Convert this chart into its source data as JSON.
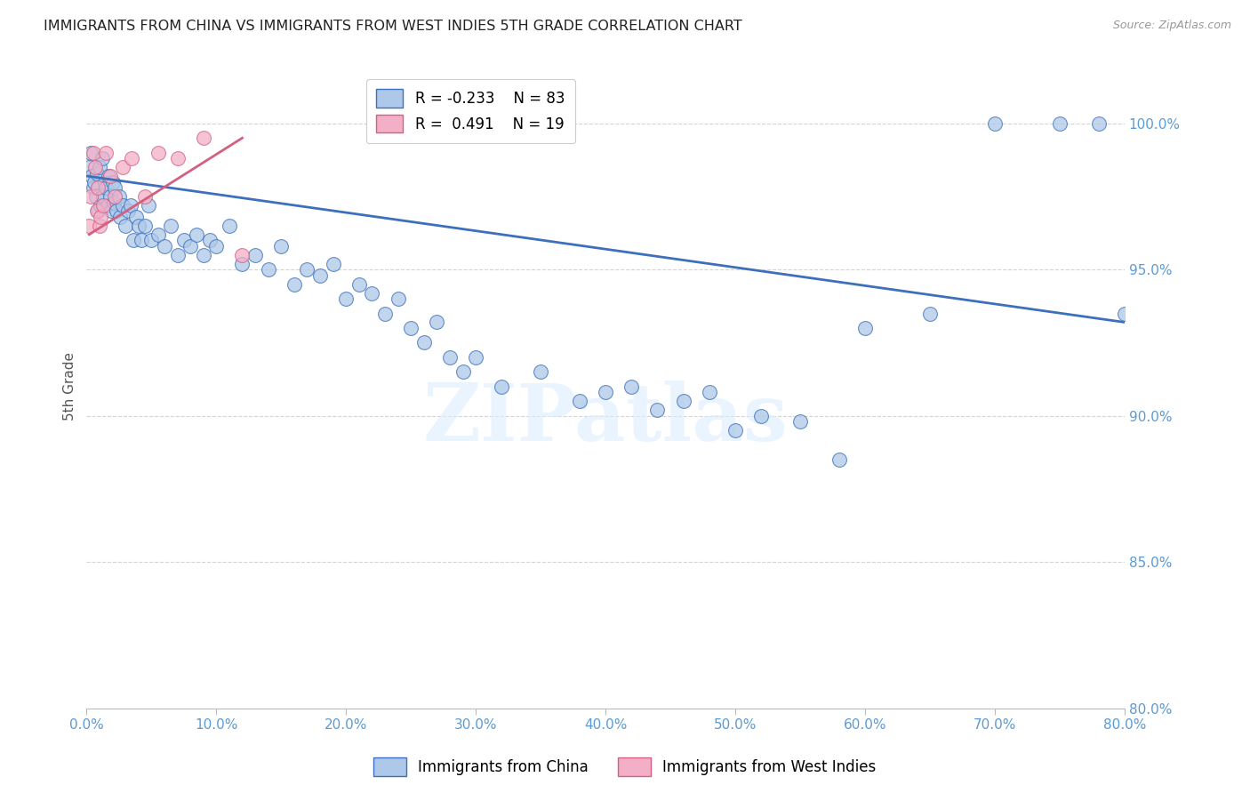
{
  "title": "IMMIGRANTS FROM CHINA VS IMMIGRANTS FROM WEST INDIES 5TH GRADE CORRELATION CHART",
  "source": "Source: ZipAtlas.com",
  "ylabel": "5th Grade",
  "xlim": [
    0.0,
    80.0
  ],
  "ylim": [
    80.0,
    102.0
  ],
  "yticks": [
    80.0,
    85.0,
    90.0,
    95.0,
    100.0
  ],
  "xticks": [
    0.0,
    10.0,
    20.0,
    30.0,
    40.0,
    50.0,
    60.0,
    70.0,
    80.0
  ],
  "china_R": -0.233,
  "china_N": 83,
  "westindies_R": 0.491,
  "westindies_N": 19,
  "china_color": "#adc8e8",
  "westindies_color": "#f4afc8",
  "china_line_color": "#3c6fbc",
  "westindies_line_color": "#d46080",
  "axis_color": "#5b9bd5",
  "grid_color": "#d0d0d0",
  "watermark_color": "#ddeeff",
  "china_x": [
    0.2,
    0.3,
    0.4,
    0.5,
    0.6,
    0.7,
    0.8,
    0.9,
    1.0,
    1.1,
    1.2,
    1.3,
    1.4,
    1.5,
    1.6,
    1.7,
    1.8,
    1.9,
    2.0,
    2.1,
    2.2,
    2.3,
    2.5,
    2.6,
    2.8,
    3.0,
    3.2,
    3.4,
    3.6,
    3.8,
    4.0,
    4.2,
    4.5,
    4.8,
    5.0,
    5.5,
    6.0,
    6.5,
    7.0,
    7.5,
    8.0,
    8.5,
    9.0,
    9.5,
    10.0,
    11.0,
    12.0,
    13.0,
    14.0,
    15.0,
    16.0,
    17.0,
    18.0,
    19.0,
    20.0,
    21.0,
    22.0,
    23.0,
    24.0,
    25.0,
    26.0,
    27.0,
    28.0,
    29.0,
    30.0,
    32.0,
    35.0,
    38.0,
    40.0,
    42.0,
    44.0,
    46.0,
    48.0,
    50.0,
    52.0,
    55.0,
    58.0,
    60.0,
    65.0,
    70.0,
    75.0,
    78.0,
    80.0
  ],
  "china_y": [
    98.5,
    99.0,
    98.2,
    97.8,
    98.0,
    97.5,
    98.3,
    97.0,
    98.5,
    97.2,
    98.8,
    97.5,
    98.0,
    97.8,
    97.2,
    98.2,
    97.5,
    97.0,
    98.0,
    97.3,
    97.8,
    97.0,
    97.5,
    96.8,
    97.2,
    96.5,
    97.0,
    97.2,
    96.0,
    96.8,
    96.5,
    96.0,
    96.5,
    97.2,
    96.0,
    96.2,
    95.8,
    96.5,
    95.5,
    96.0,
    95.8,
    96.2,
    95.5,
    96.0,
    95.8,
    96.5,
    95.2,
    95.5,
    95.0,
    95.8,
    94.5,
    95.0,
    94.8,
    95.2,
    94.0,
    94.5,
    94.2,
    93.5,
    94.0,
    93.0,
    92.5,
    93.2,
    92.0,
    91.5,
    92.0,
    91.0,
    91.5,
    90.5,
    90.8,
    91.0,
    90.2,
    90.5,
    90.8,
    89.5,
    90.0,
    89.8,
    88.5,
    93.0,
    93.5,
    100.0,
    100.0,
    100.0,
    93.5
  ],
  "westindies_x": [
    0.2,
    0.35,
    0.5,
    0.65,
    0.8,
    0.9,
    1.0,
    1.1,
    1.3,
    1.5,
    1.8,
    2.2,
    2.8,
    3.5,
    4.5,
    5.5,
    7.0,
    9.0,
    12.0
  ],
  "westindies_y": [
    96.5,
    97.5,
    99.0,
    98.5,
    97.0,
    97.8,
    96.5,
    96.8,
    97.2,
    99.0,
    98.2,
    97.5,
    98.5,
    98.8,
    97.5,
    99.0,
    98.8,
    99.5,
    95.5
  ],
  "china_line_x": [
    0.0,
    80.0
  ],
  "china_line_y": [
    98.2,
    93.2
  ],
  "westindies_line_x": [
    0.2,
    12.0
  ],
  "westindies_line_y": [
    96.2,
    99.5
  ]
}
